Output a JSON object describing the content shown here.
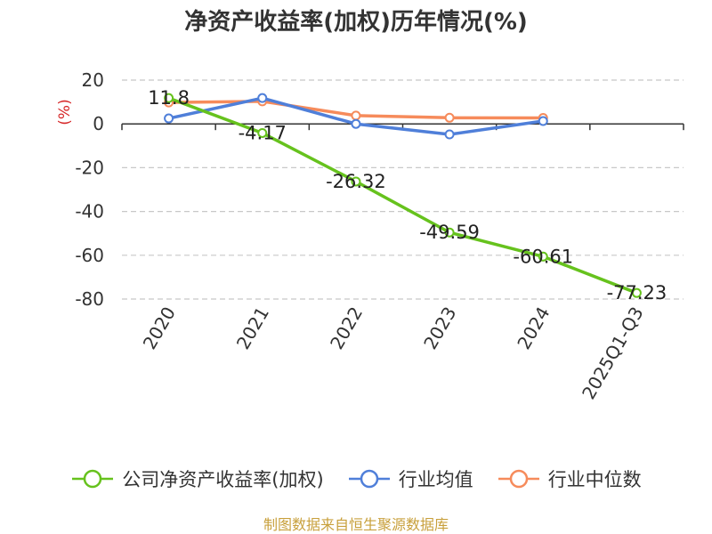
{
  "chart_data": {
    "type": "line",
    "title": "净资产收益率(加权)历年情况(%)",
    "ylabel": "(%)",
    "ylim": [
      -80,
      20
    ],
    "yticks": [
      20,
      0,
      -20,
      -40,
      -60,
      -80
    ],
    "grid": true,
    "legend_position": "bottom",
    "categories": [
      "2020",
      "2021",
      "2022",
      "2023",
      "2024",
      "2025Q1-Q3"
    ],
    "series": [
      {
        "name": "公司净资产收益率(加权)",
        "color": "#66c21d",
        "values": [
          11.8,
          -4.17,
          -26.32,
          -49.59,
          -60.61,
          -77.23
        ],
        "labels": [
          "11.8",
          "-4.17",
          "-26.32",
          "-49.59",
          "-60.61",
          "-77.23"
        ]
      },
      {
        "name": "行业均值",
        "color": "#4f7fd9",
        "values": [
          2.5,
          11.8,
          0.0,
          -4.8,
          1.3,
          null
        ]
      },
      {
        "name": "行业中位数",
        "color": "#f68b5b",
        "values": [
          9.8,
          10.3,
          3.8,
          2.8,
          2.7,
          null
        ]
      }
    ]
  },
  "footer": {
    "source": "制图数据来自恒生聚源数据库"
  }
}
